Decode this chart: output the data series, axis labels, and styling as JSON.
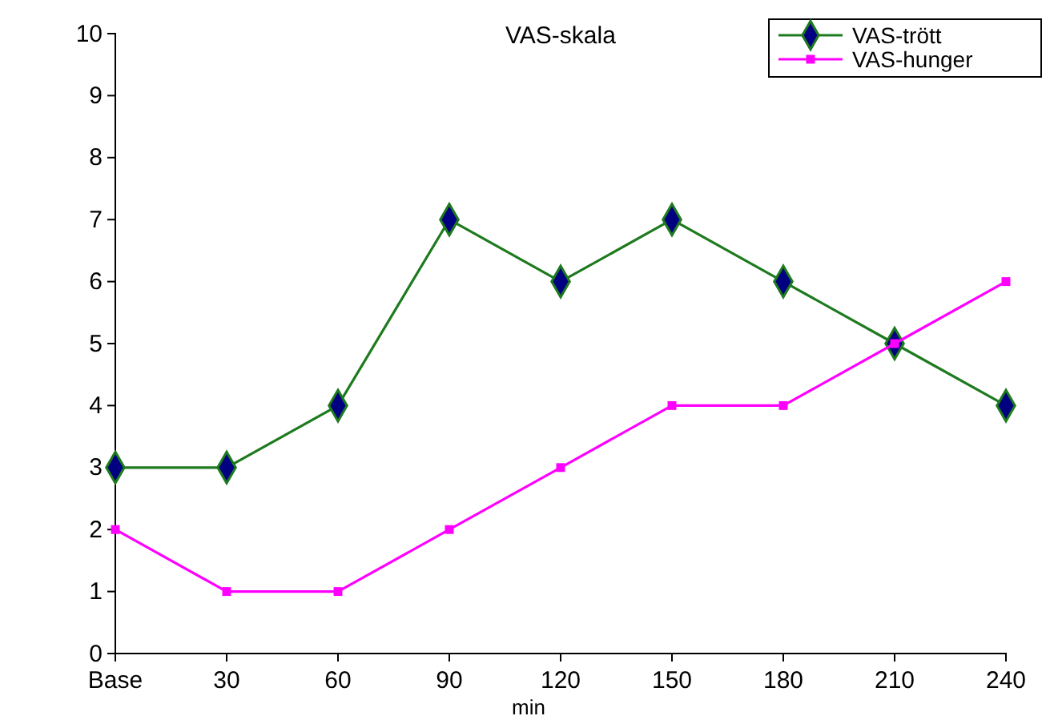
{
  "chart_data": {
    "type": "line",
    "title": "VAS-skala",
    "xlabel": "min",
    "categories": [
      "Base",
      "30",
      "60",
      "90",
      "120",
      "150",
      "180",
      "210",
      "240"
    ],
    "series": [
      {
        "name": "VAS-trött",
        "color": "#1e7a1e",
        "marker": "diamond",
        "values": [
          3,
          3,
          4,
          7,
          6,
          7,
          6,
          5,
          4
        ]
      },
      {
        "name": "VAS-hunger",
        "color": "#ff00ff",
        "marker": "square",
        "values": [
          2,
          1,
          1,
          2,
          3,
          4,
          4,
          5,
          6
        ]
      }
    ],
    "ylim": [
      0,
      10
    ],
    "yticks": [
      0,
      1,
      2,
      3,
      4,
      5,
      6,
      7,
      8,
      9,
      10
    ],
    "grid": false,
    "legend": "top right"
  }
}
